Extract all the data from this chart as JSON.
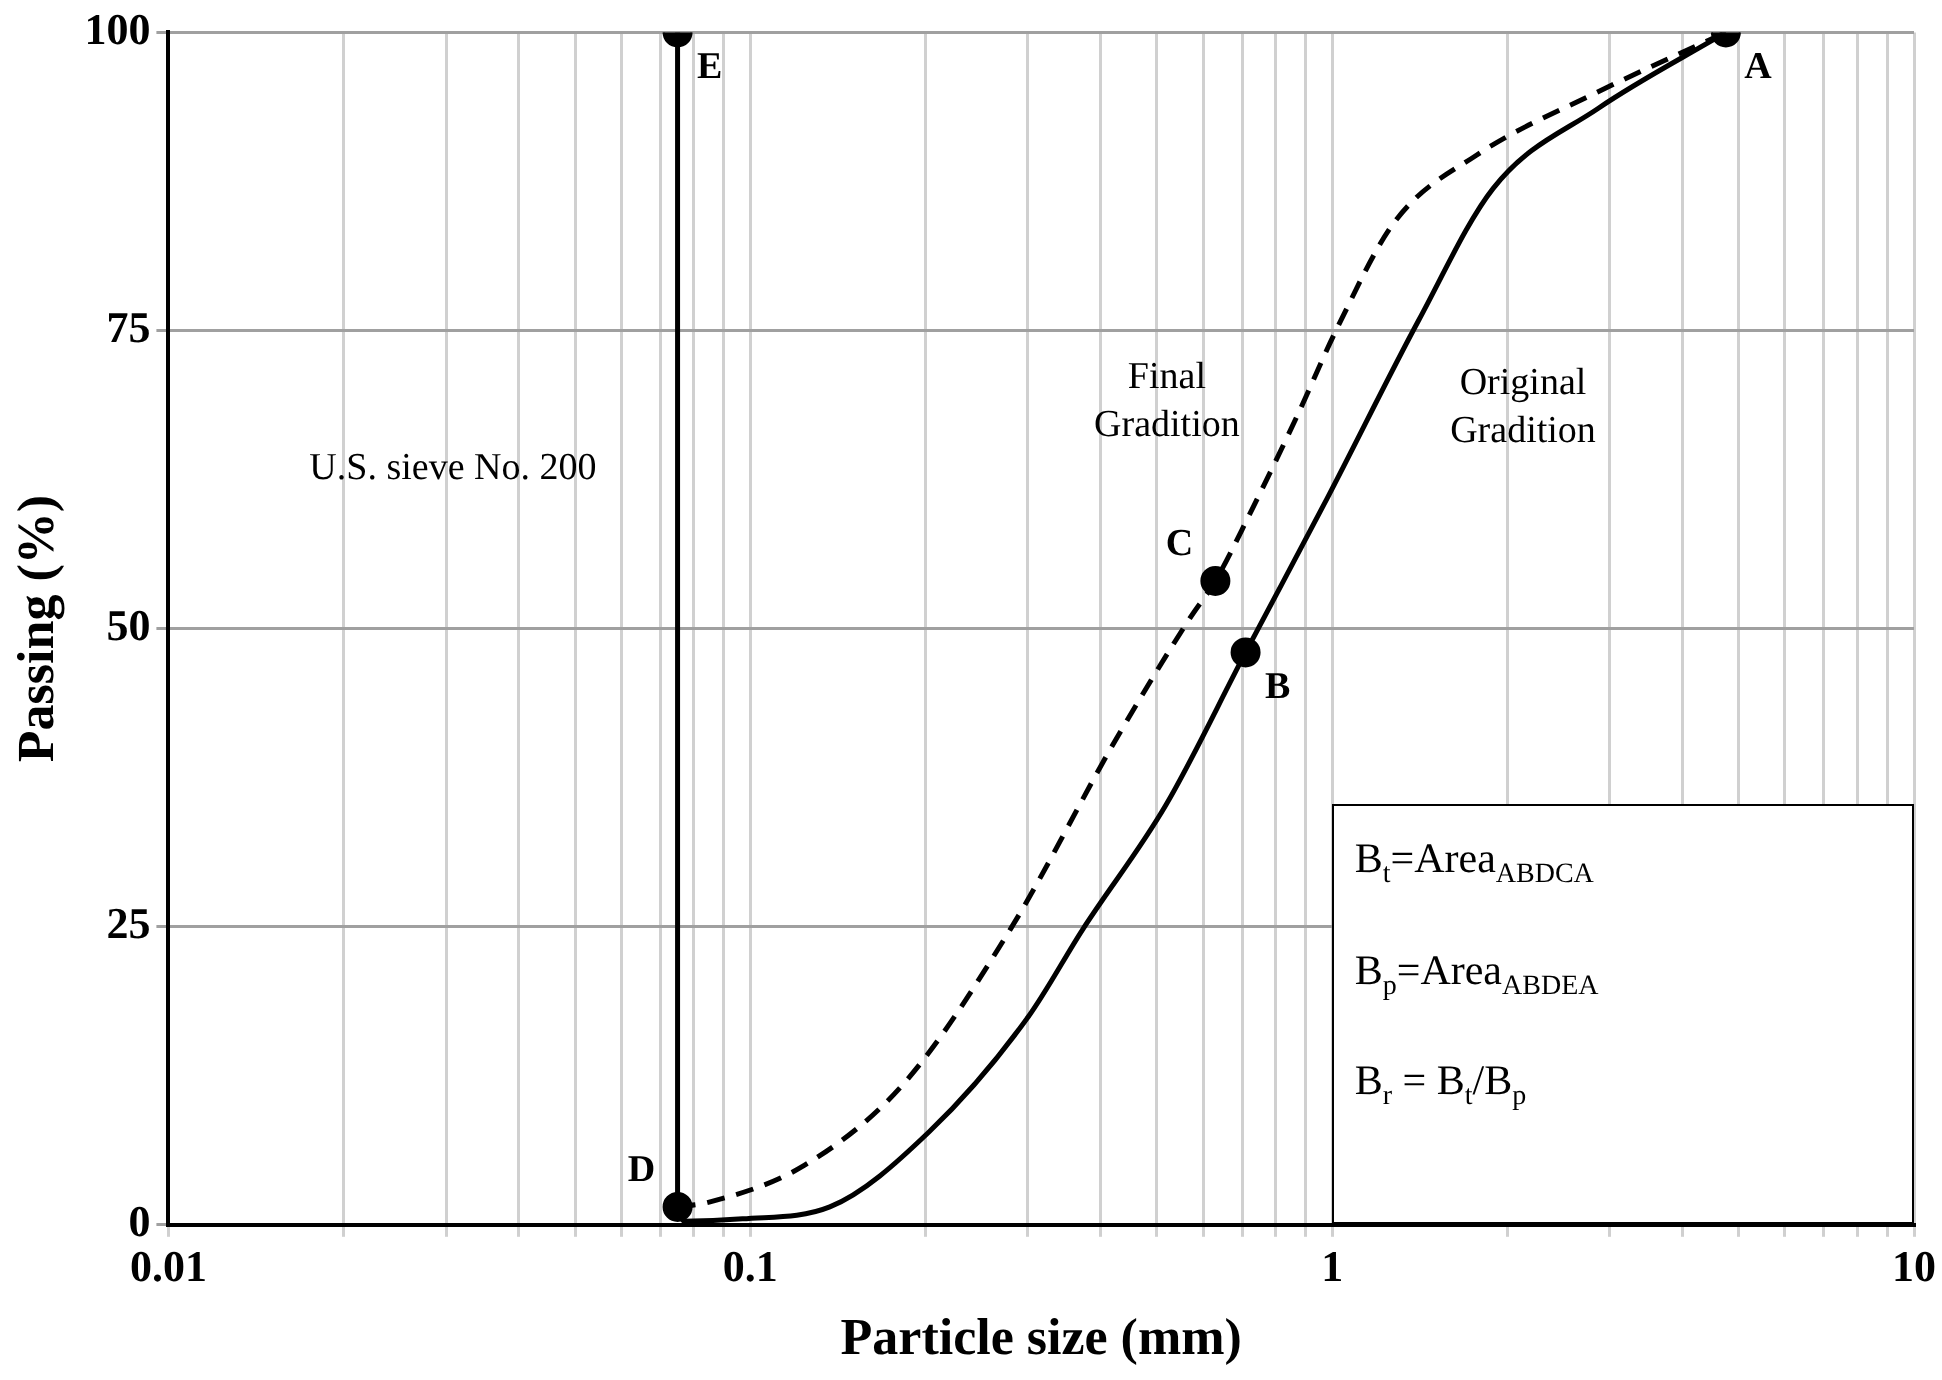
{
  "chart_data": {
    "type": "line",
    "xlabel": "Particle size (mm)",
    "ylabel": "Passing (%)",
    "log": "x",
    "grid": true,
    "legend": false,
    "xlim": [
      0.01,
      10
    ],
    "ylim": [
      0,
      100
    ],
    "xticks": [
      0.01,
      {
        "value": 0.02,
        "label": null
      },
      {
        "value": 0.03,
        "label": null
      },
      {
        "value": 0.04,
        "label": null
      },
      {
        "value": 0.05,
        "label": null
      },
      {
        "value": 0.06,
        "label": null
      },
      {
        "value": 0.07,
        "label": null
      },
      {
        "value": 0.08,
        "label": null
      },
      {
        "value": 0.09,
        "label": null
      },
      0.1,
      {
        "value": 0.2,
        "label": null
      },
      {
        "value": 0.3,
        "label": null
      },
      {
        "value": 0.4,
        "label": null
      },
      {
        "value": 0.5,
        "label": null
      },
      {
        "value": 0.6,
        "label": null
      },
      {
        "value": 0.7,
        "label": null
      },
      {
        "value": 0.8,
        "label": null
      },
      {
        "value": 0.9,
        "label": null
      },
      1,
      {
        "value": 2,
        "label": null
      },
      {
        "value": 3,
        "label": null
      },
      {
        "value": 4,
        "label": null
      },
      {
        "value": 5,
        "label": null
      },
      {
        "value": 6,
        "label": null
      },
      {
        "value": 7,
        "label": null
      },
      {
        "value": 8,
        "label": null
      },
      {
        "value": 9,
        "label": null
      },
      10
    ],
    "yticks": [
      0,
      25,
      50,
      75,
      100
    ],
    "series": [
      {
        "name": "Original Gradition",
        "color": "#000000",
        "line_style": "solid",
        "marker": "none",
        "x": [
          0.075,
          0.077,
          0.097,
          0.137,
          0.203,
          0.3,
          0.373,
          0.518,
          0.71,
          0.98,
          1.41,
          1.89,
          2.86,
          4.75
        ],
        "values": [
          1.5,
          0.3,
          0.5,
          1.5,
          7.8,
          17.4,
          24.8,
          35.2,
          48,
          60.9,
          75.9,
          86.9,
          93.6,
          100
        ]
      },
      {
        "name": "Final Gradition",
        "color": "#000000",
        "line_style": "dashed",
        "marker": "none",
        "x": [
          0.075,
          0.085,
          0.124,
          0.184,
          0.28,
          0.425,
          0.57,
          0.63,
          0.72,
          0.87,
          1.02,
          1.28,
          1.77,
          2.86,
          4.75
        ],
        "values": [
          1.5,
          1.9,
          5,
          11.9,
          24.8,
          40.7,
          50.9,
          54,
          59.5,
          67.8,
          75.2,
          84.1,
          89.7,
          95,
          100
        ]
      },
      {
        "name": "U.S. sieve No. 200",
        "color": "#000000",
        "line_style": "solid",
        "marker": "none",
        "x": [
          0.075,
          0.075
        ],
        "values": [
          1.5,
          100
        ]
      },
      {
        "type": "scatter",
        "color": "#000000",
        "marker": "circle",
        "x": [
          4.75,
          0.71,
          0.63,
          0.075,
          0.075
        ],
        "values": [
          100,
          48,
          54,
          1.5,
          100
        ]
      }
    ],
    "annotations": [
      {
        "text": "A",
        "x": 4.75,
        "y": 100
      },
      {
        "text": "B",
        "x": 0.71,
        "y": 48
      },
      {
        "text": "C",
        "x": 0.63,
        "y": 54
      },
      {
        "text": "D",
        "x": 0.075,
        "y": 1.5
      },
      {
        "text": "E",
        "x": 0.075,
        "y": 100
      },
      "B$_{t}$=Area$_{ABDCA}$",
      "B$_{p}$=Area$_{ABDEA}$",
      "B$_{r}$ = B$_{t}$/B$_{p}$"
    ]
  }
}
